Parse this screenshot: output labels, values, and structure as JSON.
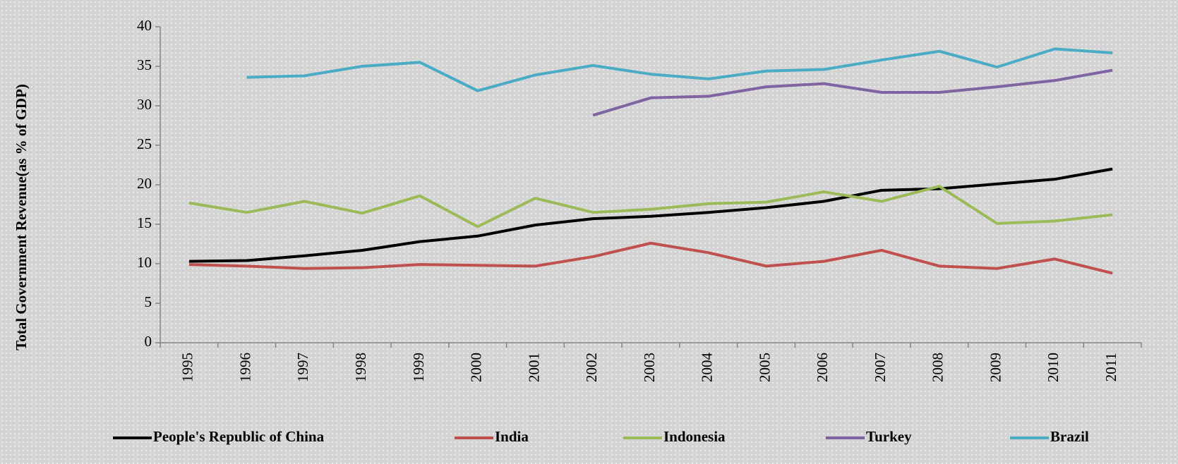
{
  "chart_data": {
    "type": "line",
    "y_label": "Total Government Revenue(as % of GDP)",
    "categories": [
      "1995",
      "1996",
      "1997",
      "1998",
      "1999",
      "2000",
      "2001",
      "2002",
      "2003",
      "2004",
      "2005",
      "2006",
      "2007",
      "2008",
      "2009",
      "2010",
      "2011"
    ],
    "series": [
      {
        "name": "People's Republic of China",
        "color": "#000000",
        "values": [
          10.3,
          10.4,
          11.0,
          11.7,
          12.8,
          13.5,
          14.9,
          15.7,
          16.0,
          16.5,
          17.1,
          17.9,
          19.3,
          19.5,
          20.1,
          20.7,
          22.0
        ]
      },
      {
        "name": "India",
        "color": "#c0504d",
        "values": [
          9.9,
          9.7,
          9.4,
          9.5,
          9.9,
          9.8,
          9.7,
          10.9,
          12.6,
          11.4,
          9.7,
          10.3,
          11.7,
          9.7,
          9.4,
          10.6,
          8.8
        ]
      },
      {
        "name": "Indonesia",
        "color": "#9bbb59",
        "values": [
          17.7,
          16.5,
          17.9,
          16.4,
          18.6,
          14.7,
          18.3,
          16.5,
          16.9,
          17.6,
          17.8,
          19.1,
          17.9,
          19.8,
          15.1,
          15.4,
          16.2
        ]
      },
      {
        "name": "Turkey",
        "color": "#8064a2",
        "values": [
          null,
          null,
          null,
          null,
          null,
          null,
          null,
          28.8,
          31.0,
          31.2,
          32.4,
          32.8,
          31.7,
          31.7,
          32.4,
          33.2,
          34.5
        ]
      },
      {
        "name": "Brazil",
        "color": "#4bacc6",
        "values": [
          null,
          33.6,
          33.8,
          35.0,
          35.5,
          31.9,
          33.9,
          35.1,
          34.0,
          33.4,
          34.4,
          34.6,
          35.8,
          36.9,
          34.9,
          37.2,
          36.7
        ]
      }
    ],
    "ylim": [
      0,
      40
    ],
    "yticks": [
      0,
      5,
      10,
      15,
      20,
      25,
      30,
      35,
      40
    ],
    "legend": "bottom"
  }
}
